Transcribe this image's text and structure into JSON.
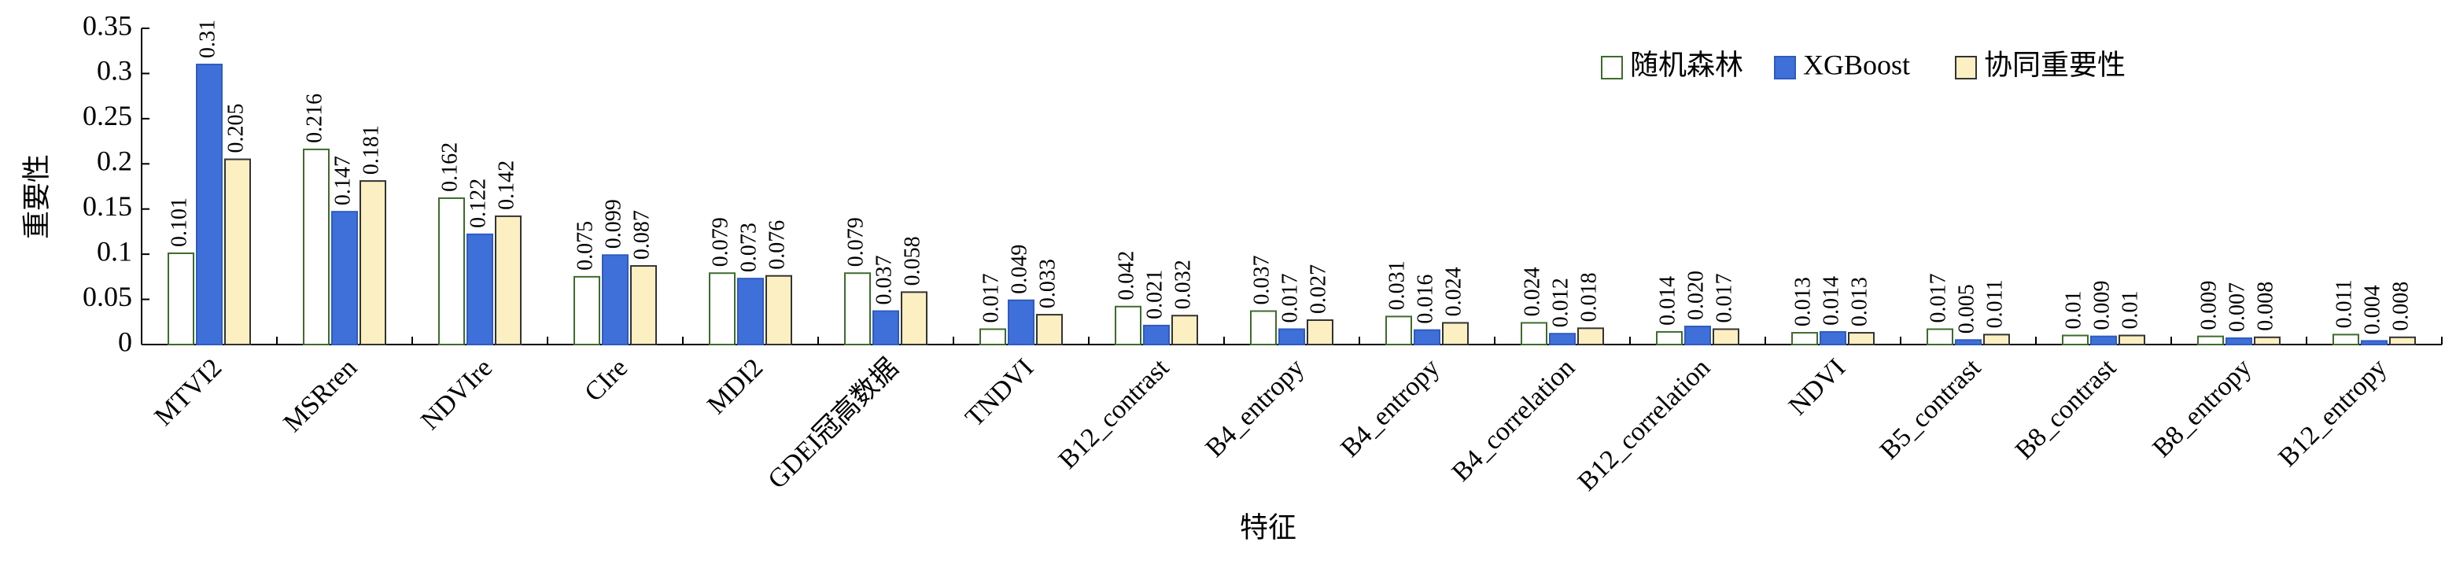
{
  "chart_data": {
    "type": "bar",
    "xlabel": "特征",
    "ylabel": "重要性",
    "categories": [
      "MTVI2",
      "MSRren",
      "NDVIre",
      "CIre",
      "MDI2",
      "GDEI冠高数据",
      "TNDVI",
      "B12_contrast",
      "B4_entropy",
      "B4_entropy",
      "B4_correlation",
      "B12_correlation",
      "NDVI",
      "B5_contrast",
      "B8_contrast",
      "B8_entropy",
      "B12_entropy"
    ],
    "series": [
      {
        "name": "随机森林",
        "color": "#ffffff",
        "edgecolor": "#3d6b2c",
        "values": [
          0.101,
          0.216,
          0.162,
          0.075,
          0.079,
          0.079,
          0.017,
          0.042,
          0.037,
          0.031,
          0.024,
          0.014,
          0.013,
          0.017,
          0.01,
          0.009,
          0.011
        ]
      },
      {
        "name": "XGBoost",
        "color": "#3f6fd8",
        "edgecolor": "#2f5bbf",
        "values": [
          0.31,
          0.147,
          0.122,
          0.099,
          0.073,
          0.037,
          0.049,
          0.021,
          0.017,
          0.016,
          0.012,
          0.02,
          0.014,
          0.005,
          0.009,
          0.007,
          0.004
        ],
        "value_labels": [
          "0.31",
          "0.147",
          "0.122",
          "0.099",
          "0.073",
          "0.037",
          "0.049",
          "0.021",
          "0.017",
          "0.016",
          "0.012",
          "0.020",
          "0.014",
          "0.005",
          "0.009",
          "0.007",
          "0.004"
        ]
      },
      {
        "name": "协同重要性",
        "color": "#fcefc2",
        "edgecolor": "#333333",
        "values": [
          0.205,
          0.181,
          0.142,
          0.087,
          0.076,
          0.058,
          0.033,
          0.032,
          0.027,
          0.024,
          0.018,
          0.017,
          0.013,
          0.011,
          0.01,
          0.008,
          0.008
        ]
      }
    ],
    "ylim": [
      0,
      0.35
    ],
    "yticks": [
      0,
      0.05,
      0.1,
      0.15,
      0.2,
      0.25,
      0.3,
      0.35
    ],
    "legend": "upper right"
  }
}
